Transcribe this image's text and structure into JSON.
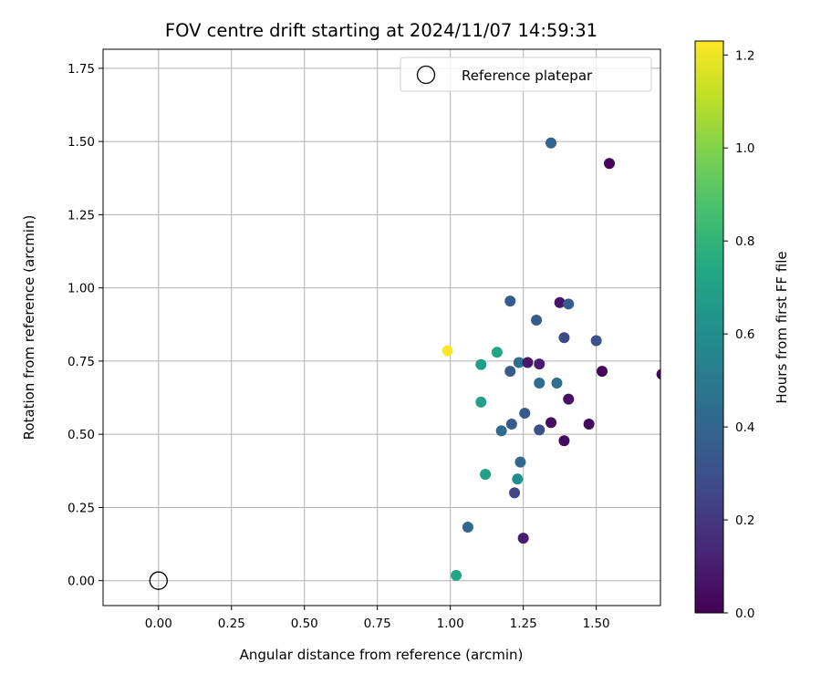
{
  "chart_data": {
    "type": "scatter",
    "title": "FOV centre drift starting at 2024/11/07 14:59:31",
    "xlabel": "Angular distance from reference (arcmin)",
    "ylabel": "Rotation from reference (arcmin)",
    "xlim": [
      -0.19,
      1.72
    ],
    "ylim": [
      -0.085,
      1.815
    ],
    "xticks": [
      0.0,
      0.25,
      0.5,
      0.75,
      1.0,
      1.25,
      1.5
    ],
    "xtick_labels": [
      "0.00",
      "0.25",
      "0.50",
      "0.75",
      "1.00",
      "1.25",
      "1.50"
    ],
    "yticks": [
      0.0,
      0.25,
      0.5,
      0.75,
      1.0,
      1.25,
      1.5,
      1.75
    ],
    "ytick_labels": [
      "0.00",
      "0.25",
      "0.50",
      "0.75",
      "1.00",
      "1.25",
      "1.50",
      "1.75"
    ],
    "grid": true,
    "legend": {
      "placement": "top-right",
      "entries": [
        "Reference platepar"
      ]
    },
    "reference_point": {
      "x": 0.0,
      "y": 0.0
    },
    "colorbar": {
      "label": "Hours from first FF file",
      "range": [
        0.0,
        1.23
      ],
      "ticks": [
        0.0,
        0.2,
        0.4,
        0.6,
        0.8,
        1.0,
        1.2
      ],
      "tick_labels": [
        "0.0",
        "0.2",
        "0.4",
        "0.6",
        "0.8",
        "1.0",
        "1.2"
      ],
      "colormap": "viridis"
    },
    "points": [
      {
        "x": 1.345,
        "y": 1.495,
        "c": 0.38
      },
      {
        "x": 1.545,
        "y": 1.425,
        "c": 0.02
      },
      {
        "x": 1.205,
        "y": 0.955,
        "c": 0.35
      },
      {
        "x": 1.375,
        "y": 0.95,
        "c": 0.07
      },
      {
        "x": 1.405,
        "y": 0.945,
        "c": 0.35
      },
      {
        "x": 1.295,
        "y": 0.89,
        "c": 0.35
      },
      {
        "x": 1.39,
        "y": 0.83,
        "c": 0.28
      },
      {
        "x": 1.5,
        "y": 0.82,
        "c": 0.32
      },
      {
        "x": 0.99,
        "y": 0.785,
        "c": 1.23
      },
      {
        "x": 1.16,
        "y": 0.78,
        "c": 0.72
      },
      {
        "x": 1.105,
        "y": 0.738,
        "c": 0.68
      },
      {
        "x": 1.235,
        "y": 0.745,
        "c": 0.45
      },
      {
        "x": 1.265,
        "y": 0.745,
        "c": 0.08
      },
      {
        "x": 1.305,
        "y": 0.74,
        "c": 0.1
      },
      {
        "x": 1.205,
        "y": 0.715,
        "c": 0.35
      },
      {
        "x": 1.52,
        "y": 0.715,
        "c": 0.02
      },
      {
        "x": 1.725,
        "y": 0.705,
        "c": 0.02
      },
      {
        "x": 1.305,
        "y": 0.675,
        "c": 0.45
      },
      {
        "x": 1.365,
        "y": 0.675,
        "c": 0.45
      },
      {
        "x": 1.405,
        "y": 0.62,
        "c": 0.05
      },
      {
        "x": 1.105,
        "y": 0.61,
        "c": 0.7
      },
      {
        "x": 1.255,
        "y": 0.572,
        "c": 0.35
      },
      {
        "x": 1.345,
        "y": 0.54,
        "c": 0.04
      },
      {
        "x": 1.475,
        "y": 0.535,
        "c": 0.03
      },
      {
        "x": 1.21,
        "y": 0.535,
        "c": 0.35
      },
      {
        "x": 1.175,
        "y": 0.512,
        "c": 0.42
      },
      {
        "x": 1.305,
        "y": 0.515,
        "c": 0.3
      },
      {
        "x": 1.39,
        "y": 0.478,
        "c": 0.04
      },
      {
        "x": 1.24,
        "y": 0.405,
        "c": 0.42
      },
      {
        "x": 1.12,
        "y": 0.363,
        "c": 0.7
      },
      {
        "x": 1.23,
        "y": 0.347,
        "c": 0.6
      },
      {
        "x": 1.22,
        "y": 0.3,
        "c": 0.25
      },
      {
        "x": 1.06,
        "y": 0.183,
        "c": 0.42
      },
      {
        "x": 1.25,
        "y": 0.145,
        "c": 0.1
      },
      {
        "x": 1.02,
        "y": 0.018,
        "c": 0.72
      }
    ]
  }
}
